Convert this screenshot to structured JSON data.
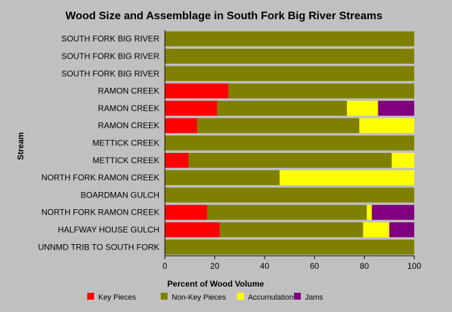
{
  "chart_data": {
    "type": "bar",
    "orientation": "horizontal",
    "stacked": true,
    "title": "Wood Size and Assemblage in South Fork Big River Streams",
    "xlabel": "Percent of Wood Volume",
    "ylabel": "Stream",
    "xlim": [
      0,
      100
    ],
    "xticks": [
      "0",
      "20",
      "40",
      "60",
      "80",
      "100"
    ],
    "grid": false,
    "legend_position": "bottom",
    "categories": [
      "SOUTH FORK BIG RIVER",
      "SOUTH FORK BIG RIVER",
      "SOUTH FORK BIG RIVER",
      "RAMON CREEK",
      "RAMON CREEK",
      "RAMON CREEK",
      "METTICK CREEK",
      "METTICK CREEK",
      "NORTH FORK RAMON CREEK",
      "BOARDMAN GULCH",
      "NORTH FORK RAMON CREEK",
      "HALFWAY HOUSE GULCH",
      "UNNMD TRIB TO SOUTH FORK"
    ],
    "series": [
      {
        "name": "Key Pieces",
        "color": "#ff0000",
        "values": [
          0,
          0,
          0,
          25.5,
          21,
          13,
          0,
          9.5,
          0,
          0,
          17,
          22,
          0
        ]
      },
      {
        "name": "Non-Key Pieces",
        "color": "#808000",
        "values": [
          100,
          100,
          100,
          74.5,
          52,
          65,
          100,
          81.5,
          46,
          100,
          64,
          57.5,
          100
        ]
      },
      {
        "name": "Accumulations",
        "color": "#ffff00",
        "values": [
          0,
          0,
          0,
          0,
          12.5,
          22,
          0,
          9,
          54,
          0,
          2,
          10.5,
          0
        ]
      },
      {
        "name": "Jams",
        "color": "#800080",
        "values": [
          0,
          0,
          0,
          0,
          14.5,
          0,
          0,
          0,
          0,
          0,
          17,
          10,
          0
        ]
      }
    ]
  }
}
